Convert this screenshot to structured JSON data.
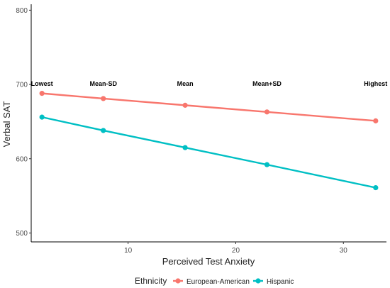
{
  "chart_data": {
    "type": "line",
    "title": "",
    "xlabel": "Perceived Test Anxiety",
    "ylabel": "Verbal SAT",
    "xlim": [
      1,
      34
    ],
    "ylim": [
      488,
      808
    ],
    "x_ticks": [
      10,
      20,
      30
    ],
    "y_ticks": [
      500,
      600,
      700,
      800
    ],
    "grid": false,
    "x": [
      2,
      7.7,
      15.3,
      22.9,
      33
    ],
    "series": [
      {
        "name": "European-American",
        "color": "#f8766d",
        "values": [
          688,
          681,
          672,
          663,
          651
        ]
      },
      {
        "name": "Hispanic",
        "color": "#00bfc4",
        "values": [
          656,
          638,
          615,
          592,
          561
        ]
      }
    ],
    "annotations": [
      {
        "text": "Lowest",
        "x": 2,
        "y": 701
      },
      {
        "text": "Mean-SD",
        "x": 7.7,
        "y": 701
      },
      {
        "text": "Mean",
        "x": 15.3,
        "y": 701
      },
      {
        "text": "Mean+SD",
        "x": 22.9,
        "y": 701
      },
      {
        "text": "Highest",
        "x": 33,
        "y": 701
      }
    ],
    "legend": {
      "title": "Ethnicity",
      "position": "bottom"
    }
  }
}
